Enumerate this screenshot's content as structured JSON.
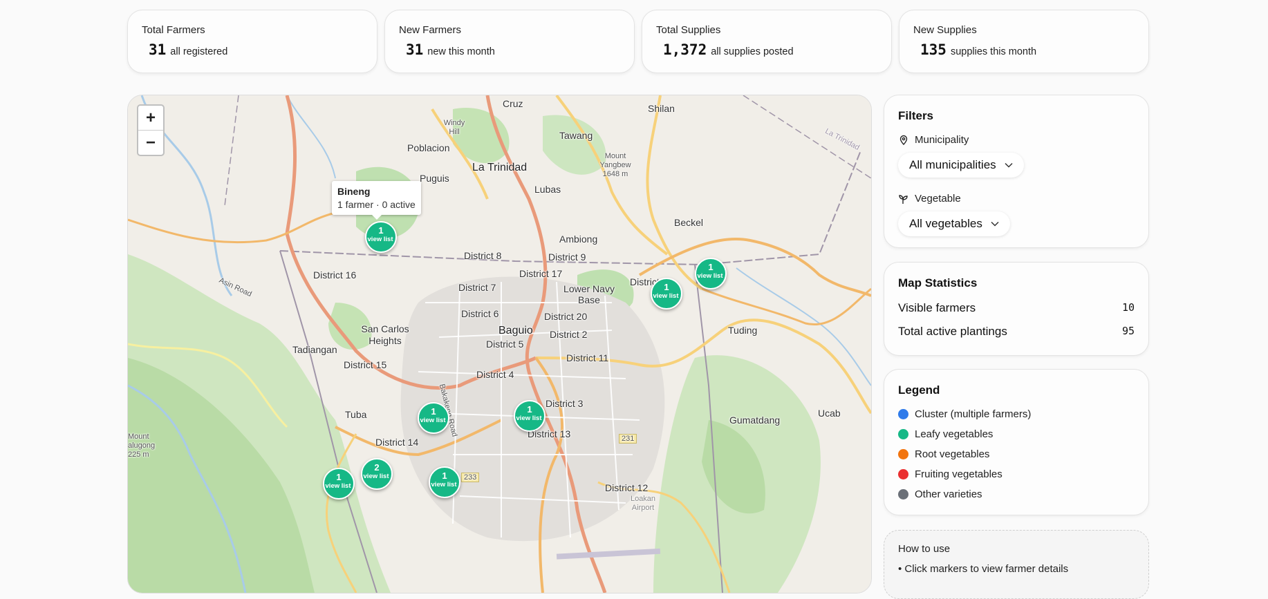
{
  "stats": [
    {
      "title": "Total Farmers",
      "value": "31",
      "subtitle": "all registered"
    },
    {
      "title": "New Farmers",
      "value": "31",
      "subtitle": "new this month"
    },
    {
      "title": "Total Supplies",
      "value": "1,372",
      "subtitle": "all supplies posted"
    },
    {
      "title": "New Supplies",
      "value": "135",
      "subtitle": "supplies this month"
    }
  ],
  "map": {
    "zoom_in": "+",
    "zoom_out": "−",
    "tooltip": {
      "title": "Bineng",
      "text": "1 farmer · 0 active"
    },
    "marker_link": "view list",
    "markers": [
      "1",
      "1",
      "1",
      "1",
      "1",
      "1",
      "2",
      "1"
    ],
    "places": {
      "cruz": "Cruz",
      "shilan": "Shilan",
      "windy_hill": "Windy Hill",
      "poblacion": "Poblacion",
      "tawang": "Tawang",
      "la_trinidad": "La Trinidad",
      "mount_yangbew": "Mount Yangbew 1648 m",
      "puguis": "Puguis",
      "lubas": "Lubas",
      "beckel": "Beckel",
      "ambiong": "Ambiong",
      "district_8": "District 8",
      "district_9": "District 9",
      "district_17": "District 17",
      "district_1": "District 1",
      "district_16": "District 16",
      "district_7": "District 7",
      "lower_navy_base": "Lower Navy Base",
      "district_6": "District 6",
      "district_20": "District 20",
      "san_carlos": "San Carlos Heights",
      "tadiangan": "Tadiangan",
      "baguio": "Baguio",
      "district_2": "District 2",
      "tuding": "Tuding",
      "district_5": "District 5",
      "district_11": "District 11",
      "district_15": "District 15",
      "district_4": "District 4",
      "district_3": "District 3",
      "gumatdang": "Gumatdang",
      "ucab": "Ucab",
      "tuba": "Tuba",
      "district_14": "District 14",
      "district_13": "District 13",
      "district_12": "District 12",
      "mount_galugong": "Mount alugong 225 m",
      "road_231": "231",
      "road_233": "233",
      "lookan": "Loakan Airport",
      "asin_road": "Asin Road",
      "bakakeng_road": "Bakakeng Road",
      "la_trinidad_road": "La Trinidad"
    }
  },
  "filters": {
    "title": "Filters",
    "municipality_label": "Municipality",
    "municipality_value": "All municipalities",
    "vegetable_label": "Vegetable",
    "vegetable_value": "All vegetables"
  },
  "map_statistics": {
    "title": "Map Statistics",
    "visible_farmers_label": "Visible farmers",
    "visible_farmers": "10",
    "total_active_label": "Total active plantings",
    "total_active": "95"
  },
  "legend": {
    "title": "Legend",
    "items": [
      {
        "label": "Cluster (multiple farmers)",
        "color": "#2f7bea"
      },
      {
        "label": "Leafy vegetables",
        "color": "#16b886"
      },
      {
        "label": "Root vegetables",
        "color": "#f2740f"
      },
      {
        "label": "Fruiting vegetables",
        "color": "#ea3030"
      },
      {
        "label": "Other varieties",
        "color": "#6b7078"
      }
    ]
  },
  "how_to": {
    "title": "How to use",
    "line1": "• Click markers to view farmer details"
  }
}
